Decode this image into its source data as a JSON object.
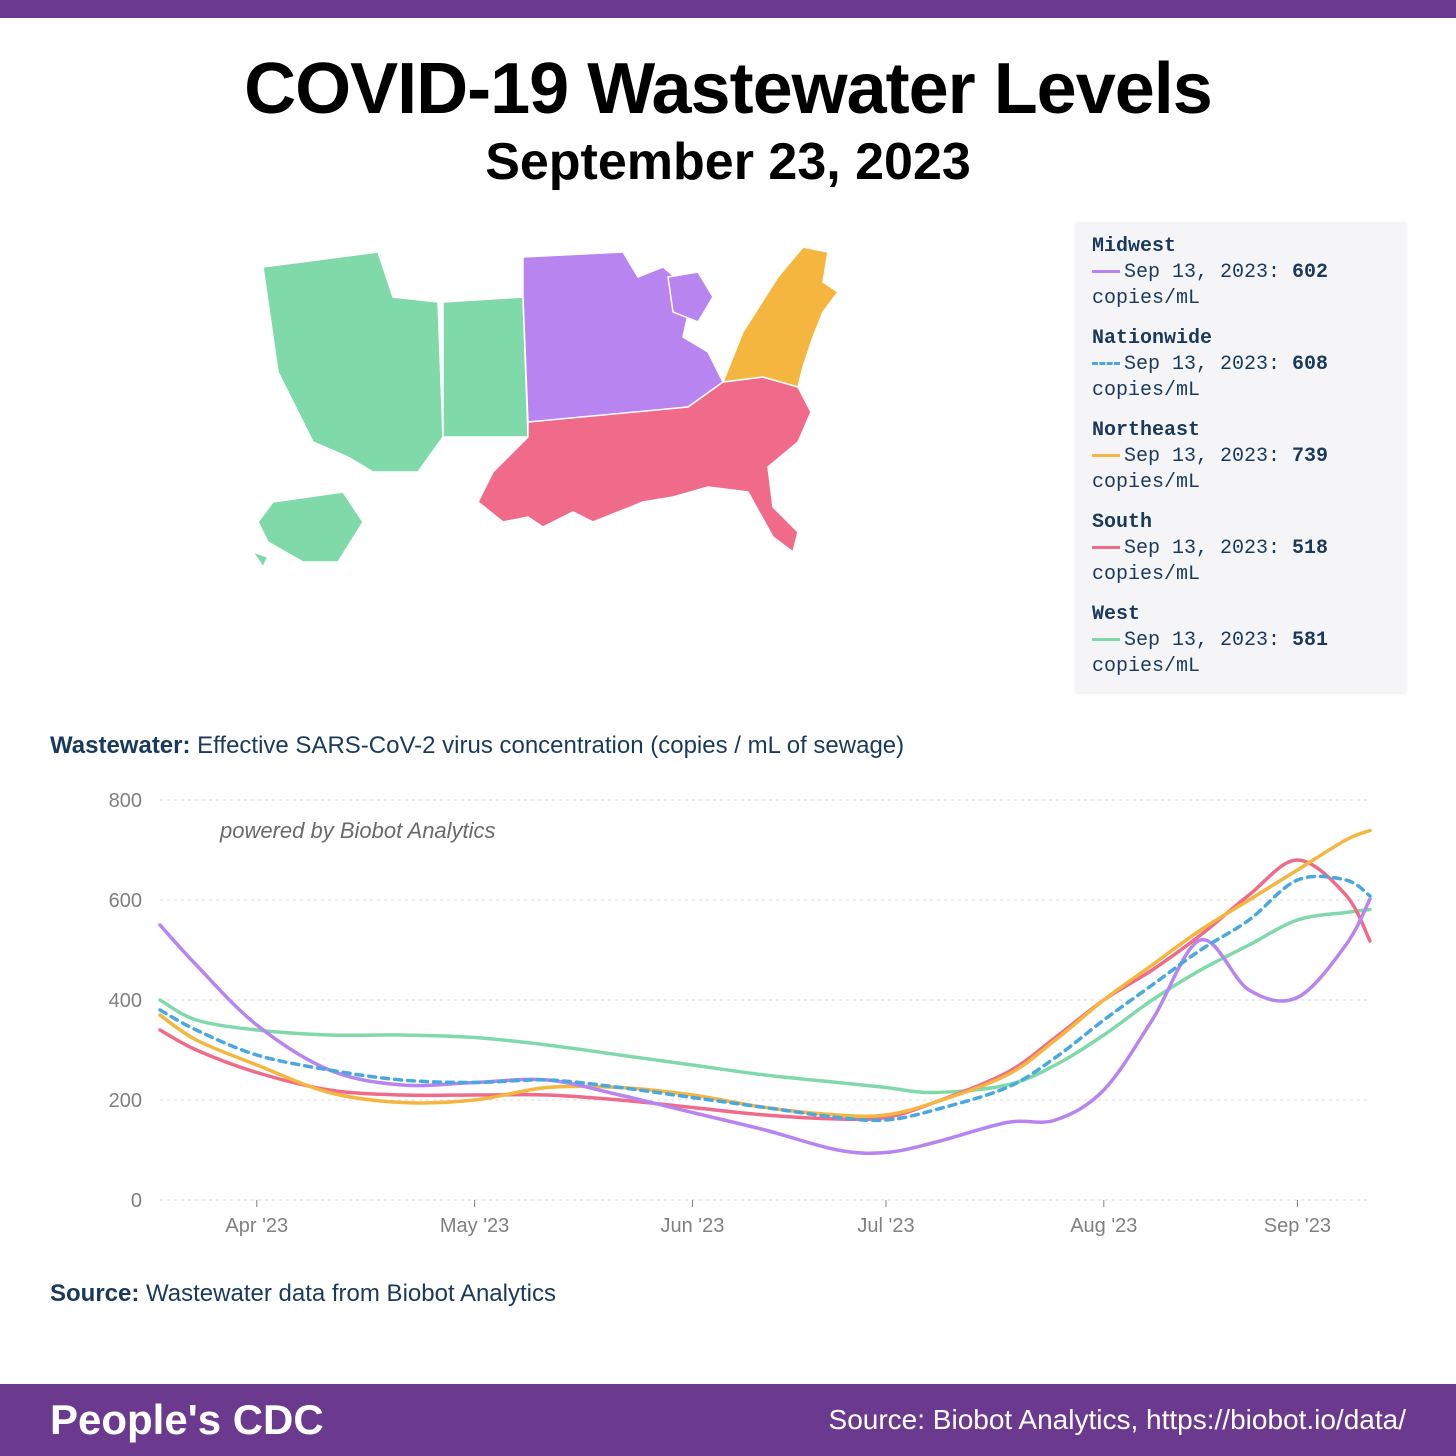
{
  "colors": {
    "top_bar": "#6b3a8e",
    "bottom_bar": "#6b3a8e",
    "background": "#ffffff",
    "legend_bg": "#f5f5f7",
    "text_dark": "#1a3a5c",
    "grid": "#d8d8d8",
    "axis_text": "#808080"
  },
  "header": {
    "title": "COVID-19 Wastewater Levels",
    "subtitle": "September 23, 2023"
  },
  "map": {
    "region_colors": {
      "west": "#7fd9a9",
      "midwest": "#b784f0",
      "south": "#f06b8a",
      "northeast": "#f4b63f"
    }
  },
  "legend": [
    {
      "region": "Midwest",
      "color": "#b784f0",
      "dashed": false,
      "date": "Sep 13, 2023",
      "value": "602",
      "unit": "copies/mL"
    },
    {
      "region": "Nationwide",
      "color": "#4aa8e0",
      "dashed": true,
      "date": "Sep 13, 2023",
      "value": "608",
      "unit": "copies/mL"
    },
    {
      "region": "Northeast",
      "color": "#f4b63f",
      "dashed": false,
      "date": "Sep 13, 2023",
      "value": "739",
      "unit": "copies/mL"
    },
    {
      "region": "South",
      "color": "#f06b8a",
      "dashed": false,
      "date": "Sep 13, 2023",
      "value": "518",
      "unit": "copies/mL"
    },
    {
      "region": "West",
      "color": "#7fd9a9",
      "dashed": false,
      "date": "Sep 13, 2023",
      "value": "581",
      "unit": "copies/mL"
    }
  ],
  "wastewater_label": {
    "bold": "Wastewater:",
    "rest": " Effective SARS-CoV-2 virus concentration (copies / mL of sewage)"
  },
  "chart": {
    "attribution": "powered by Biobot Analytics",
    "ylim": [
      0,
      800
    ],
    "ytick_step": 200,
    "yticks": [
      0,
      200,
      400,
      600,
      800
    ],
    "x_labels": [
      "Apr '23",
      "May '23",
      "Jun '23",
      "Jul '23",
      "Aug '23",
      "Sep '23"
    ],
    "x_positions": [
      0.08,
      0.26,
      0.44,
      0.6,
      0.78,
      0.94
    ],
    "grid_color": "#d8d8d8",
    "line_width": 3.5,
    "series": [
      {
        "name": "West",
        "color": "#7fd9a9",
        "dashed": false,
        "x": [
          0.0,
          0.03,
          0.08,
          0.14,
          0.2,
          0.26,
          0.32,
          0.38,
          0.44,
          0.5,
          0.56,
          0.6,
          0.64,
          0.7,
          0.74,
          0.78,
          0.82,
          0.86,
          0.9,
          0.94,
          0.98,
          1.0
        ],
        "y": [
          400,
          360,
          340,
          330,
          330,
          325,
          310,
          290,
          270,
          250,
          235,
          225,
          215,
          230,
          270,
          330,
          400,
          460,
          510,
          560,
          575,
          581
        ]
      },
      {
        "name": "South",
        "color": "#f06b8a",
        "dashed": false,
        "x": [
          0.0,
          0.03,
          0.08,
          0.14,
          0.2,
          0.26,
          0.32,
          0.38,
          0.44,
          0.5,
          0.56,
          0.6,
          0.64,
          0.7,
          0.74,
          0.78,
          0.82,
          0.86,
          0.9,
          0.94,
          0.98,
          1.0
        ],
        "y": [
          340,
          300,
          255,
          220,
          210,
          210,
          210,
          200,
          185,
          170,
          162,
          165,
          195,
          255,
          325,
          400,
          460,
          530,
          610,
          680,
          610,
          518
        ]
      },
      {
        "name": "Northeast",
        "color": "#f4b63f",
        "dashed": false,
        "x": [
          0.0,
          0.03,
          0.08,
          0.14,
          0.2,
          0.26,
          0.32,
          0.38,
          0.44,
          0.5,
          0.56,
          0.6,
          0.64,
          0.7,
          0.74,
          0.78,
          0.82,
          0.86,
          0.9,
          0.94,
          0.98,
          1.0
        ],
        "y": [
          370,
          320,
          270,
          215,
          195,
          200,
          225,
          225,
          210,
          185,
          170,
          170,
          195,
          250,
          320,
          400,
          470,
          540,
          600,
          660,
          720,
          739
        ]
      },
      {
        "name": "Midwest",
        "color": "#b784f0",
        "dashed": false,
        "x": [
          0.0,
          0.03,
          0.08,
          0.14,
          0.2,
          0.26,
          0.32,
          0.38,
          0.44,
          0.5,
          0.56,
          0.6,
          0.64,
          0.7,
          0.74,
          0.78,
          0.82,
          0.86,
          0.9,
          0.94,
          0.98,
          1.0
        ],
        "y": [
          550,
          470,
          350,
          260,
          230,
          235,
          240,
          210,
          175,
          140,
          100,
          95,
          115,
          155,
          160,
          220,
          360,
          520,
          420,
          405,
          510,
          602
        ]
      },
      {
        "name": "Nationwide",
        "color": "#4aa8e0",
        "dashed": true,
        "x": [
          0.0,
          0.03,
          0.08,
          0.14,
          0.2,
          0.26,
          0.32,
          0.38,
          0.44,
          0.5,
          0.56,
          0.6,
          0.64,
          0.7,
          0.74,
          0.78,
          0.82,
          0.86,
          0.9,
          0.94,
          0.98,
          1.0
        ],
        "y": [
          380,
          340,
          290,
          260,
          240,
          235,
          240,
          225,
          205,
          185,
          165,
          160,
          180,
          225,
          285,
          360,
          430,
          500,
          560,
          640,
          640,
          608
        ]
      }
    ]
  },
  "source_line": {
    "bold": "Source:",
    "rest": " Wastewater data from Biobot Analytics"
  },
  "footer": {
    "brand": "People's CDC",
    "source": "Source: Biobot Analytics, https://biobot.io/data/"
  }
}
